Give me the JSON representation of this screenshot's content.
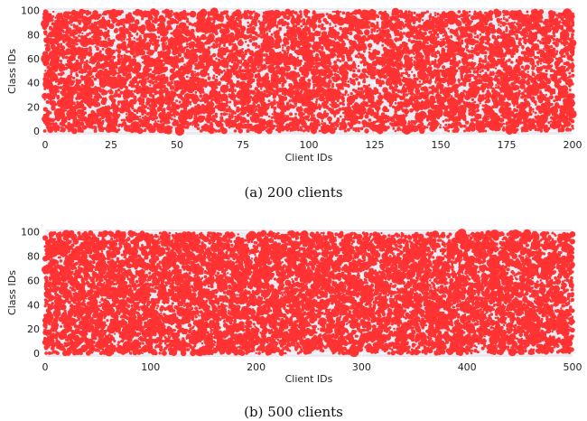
{
  "chart_data": [
    {
      "type": "scatter",
      "title": "",
      "xlabel": "Client IDs",
      "ylabel": "Class IDs",
      "xlim": [
        0,
        200
      ],
      "ylim": [
        -3,
        102
      ],
      "x_ticks": [
        "0",
        "25",
        "50",
        "75",
        "100",
        "125",
        "150",
        "175",
        "200"
      ],
      "y_ticks": [
        "0",
        "20",
        "40",
        "60",
        "80",
        "100"
      ],
      "caption": "(a)  200 clients",
      "n_clients": 200,
      "n_classes": 100,
      "marker_color": "#ff3333",
      "plot_background": "#eaeaf2",
      "grid": true,
      "note_points": "one dot per (client, class) pair held by that client; dot area scales with sample count; points are generated by seeded random sampling to match the visual density"
    },
    {
      "type": "scatter",
      "title": "",
      "xlabel": "Client IDs",
      "ylabel": "Class IDs",
      "xlim": [
        0,
        500
      ],
      "ylim": [
        -3,
        102
      ],
      "x_ticks": [
        "0",
        "100",
        "200",
        "300",
        "400",
        "500"
      ],
      "y_ticks": [
        "0",
        "20",
        "40",
        "60",
        "80",
        "100"
      ],
      "caption": "(b)  500 clients",
      "n_clients": 500,
      "n_classes": 100,
      "marker_color": "#ff3333",
      "plot_background": "#eaeaf2",
      "grid": true
    }
  ]
}
